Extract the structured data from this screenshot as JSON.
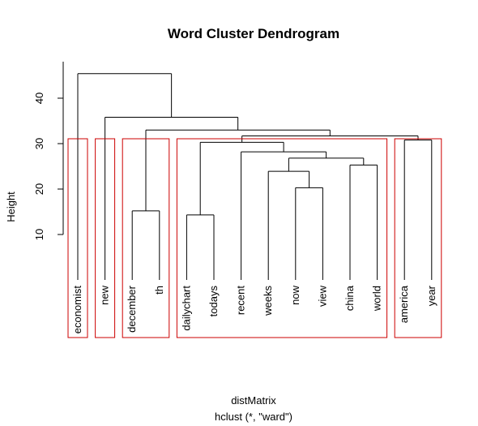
{
  "chart_data": {
    "type": "dendrogram",
    "title": "Word Cluster Dendrogram",
    "ylabel": "Height",
    "xlabel": "distMatrix",
    "sublabel": "hclust (*, \"ward\")",
    "y_ticks": [
      10,
      20,
      30,
      40
    ],
    "ylim": [
      0,
      45
    ],
    "leaves": [
      "economist",
      "new",
      "december",
      "th",
      "dailychart",
      "todays",
      "recent",
      "weeks",
      "now",
      "view",
      "china",
      "world",
      "america",
      "year"
    ],
    "merges": [
      {
        "a": "december",
        "b": "th",
        "height": 15.2
      },
      {
        "a": "dailychart",
        "b": "todays",
        "height": 14.3
      },
      {
        "a": "now",
        "b": "view",
        "height": 20.3
      },
      {
        "a": "weeks",
        "b": "now+view",
        "height": 23.9
      },
      {
        "a": "china",
        "b": "world",
        "height": 25.3
      },
      {
        "a": "weeks..view",
        "b": "china+world",
        "height": 26.8
      },
      {
        "a": "recent",
        "b": "weeks..world",
        "height": 28.2
      },
      {
        "a": "dailychart+todays",
        "b": "recent..world",
        "height": 30.3
      },
      {
        "a": "america",
        "b": "year",
        "height": 30.8
      },
      {
        "a": "dailychart..world",
        "b": "america+year",
        "height": 31.7
      },
      {
        "a": "december+th",
        "b": "dailychart..year",
        "height": 33.0
      },
      {
        "a": "new",
        "b": "december..year",
        "height": 35.8
      },
      {
        "a": "economist",
        "b": "new..year",
        "height": 45.4
      }
    ],
    "clusters": [
      [
        "economist"
      ],
      [
        "new"
      ],
      [
        "december",
        "th"
      ],
      [
        "dailychart",
        "todays",
        "recent",
        "weeks",
        "now",
        "view",
        "china",
        "world"
      ],
      [
        "america",
        "year"
      ]
    ],
    "cluster_box_color": "#cc0000",
    "line_color": "#000000"
  }
}
